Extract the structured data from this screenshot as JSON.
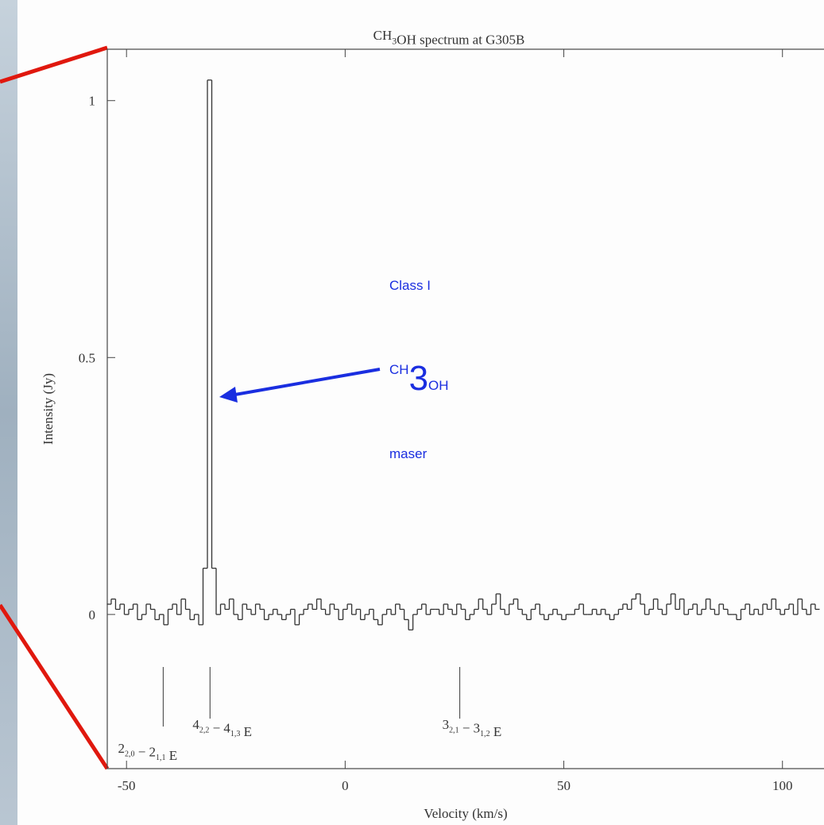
{
  "chart_data": {
    "type": "step",
    "title": [
      {
        "text": "CH"
      },
      {
        "sub": "3"
      },
      {
        "text": "OH spectrum at G305B"
      }
    ],
    "xlabel": "Velocity (km/s)",
    "ylabel": "Intensity (Jy)",
    "x": [
      -54,
      -53,
      -52,
      -51,
      -50,
      -49,
      -48,
      -47,
      -46,
      -45,
      -44,
      -43,
      -42,
      -41,
      -40,
      -39,
      -38,
      -37,
      -36,
      -35,
      -34,
      -33,
      -32,
      -31,
      -30,
      -29,
      -28,
      -27,
      -26,
      -25,
      -24,
      -23,
      -22,
      -21,
      -20,
      -19,
      -18,
      -17,
      -16,
      -15,
      -14,
      -13,
      -12,
      -11,
      -10,
      -9,
      -8,
      -7,
      -6,
      -5,
      -4,
      -3,
      -2,
      -1,
      0,
      1,
      2,
      3,
      4,
      5,
      6,
      7,
      8,
      9,
      10,
      11,
      12,
      13,
      14,
      15,
      16,
      17,
      18,
      19,
      20,
      21,
      22,
      23,
      24,
      25,
      26,
      27,
      28,
      29,
      30,
      31,
      32,
      33,
      34,
      35,
      36,
      37,
      38,
      39,
      40,
      41,
      42,
      43,
      44,
      45,
      46,
      47,
      48,
      49,
      50,
      51,
      52,
      53,
      54,
      55,
      56,
      57,
      58,
      59,
      60,
      61,
      62,
      63,
      64,
      65,
      66,
      67,
      68,
      69,
      70,
      71,
      72,
      73,
      74,
      75,
      76,
      77,
      78,
      79,
      80,
      81,
      82,
      83,
      84,
      85,
      86,
      87,
      88,
      89,
      90,
      91,
      92,
      93,
      94,
      95,
      96,
      97,
      98,
      99,
      100,
      101,
      102,
      103,
      104,
      105,
      106,
      107,
      108
    ],
    "values": [
      0.02,
      0.03,
      0.01,
      0.02,
      0.0,
      0.01,
      0.02,
      -0.01,
      0.0,
      0.02,
      0.01,
      -0.01,
      0.0,
      -0.02,
      0.01,
      0.02,
      0.0,
      0.03,
      0.01,
      -0.01,
      0.0,
      -0.02,
      0.09,
      1.04,
      0.09,
      0.0,
      0.02,
      0.01,
      0.03,
      0.0,
      -0.01,
      0.02,
      0.01,
      0.0,
      0.02,
      0.01,
      -0.01,
      0.0,
      0.01,
      0.0,
      -0.01,
      0.0,
      0.01,
      -0.02,
      0.0,
      0.01,
      0.02,
      0.01,
      0.03,
      0.01,
      0.0,
      0.02,
      0.01,
      -0.01,
      0.01,
      0.02,
      0.0,
      0.01,
      -0.01,
      0.0,
      0.01,
      -0.01,
      -0.02,
      0.0,
      0.01,
      0.0,
      0.02,
      0.01,
      -0.01,
      -0.03,
      0.0,
      0.01,
      0.02,
      0.0,
      0.01,
      0.01,
      0.0,
      0.02,
      0.01,
      0.0,
      0.02,
      0.01,
      -0.01,
      0.0,
      0.01,
      0.03,
      0.01,
      0.0,
      0.02,
      0.04,
      0.01,
      0.0,
      0.02,
      0.03,
      0.01,
      0.0,
      -0.01,
      0.01,
      0.02,
      0.0,
      -0.01,
      0.0,
      0.01,
      0.0,
      -0.01,
      0.0,
      0.0,
      0.01,
      0.02,
      0.0,
      0.0,
      0.01,
      0.0,
      0.01,
      0.0,
      -0.01,
      0.0,
      0.01,
      0.02,
      0.01,
      0.03,
      0.04,
      0.02,
      0.0,
      0.01,
      0.03,
      0.01,
      0.0,
      0.02,
      0.04,
      0.01,
      0.03,
      0.0,
      0.01,
      0.02,
      0.0,
      0.01,
      0.03,
      0.01,
      0.0,
      0.02,
      0.01,
      0.0,
      0.0,
      -0.01,
      0.01,
      0.02,
      0.0,
      0.01,
      0.0,
      0.02,
      0.01,
      0.03,
      0.01,
      0.0,
      0.01,
      0.02,
      0.0,
      0.03,
      0.01,
      0.0,
      0.02,
      0.01
    ],
    "color": "#333333",
    "xlim": [
      -54.4,
      109.5
    ],
    "ylim": [
      -0.3,
      1.1
    ],
    "xticks": [
      -50,
      0,
      50,
      100
    ],
    "yticks": [
      0,
      0.5,
      1
    ],
    "line_markers": [
      {
        "x": -41.6,
        "label": [
          {
            "text": "2"
          },
          {
            "sub": "2,0"
          },
          {
            "text": " − 2"
          },
          {
            "sub": "1,1"
          },
          {
            "text": " E"
          }
        ]
      },
      {
        "x": -30.9,
        "label": [
          {
            "text": "4"
          },
          {
            "sub": "2,2"
          },
          {
            "text": " − 4"
          },
          {
            "sub": "1,3"
          },
          {
            "text": " E"
          }
        ]
      },
      {
        "x": 26.2,
        "label": [
          {
            "text": "3"
          },
          {
            "sub": "2,1"
          },
          {
            "text": " − 3"
          },
          {
            "sub": "1,2"
          },
          {
            "text": " E"
          }
        ]
      }
    ],
    "annotation": {
      "lines": [
        [
          {
            "text": "Class I"
          }
        ],
        [
          {
            "text": "CH"
          },
          {
            "sub": "3"
          },
          {
            "text": "OH"
          }
        ],
        [
          {
            "text": "maser"
          }
        ]
      ],
      "color": "#1a2ee0"
    }
  }
}
